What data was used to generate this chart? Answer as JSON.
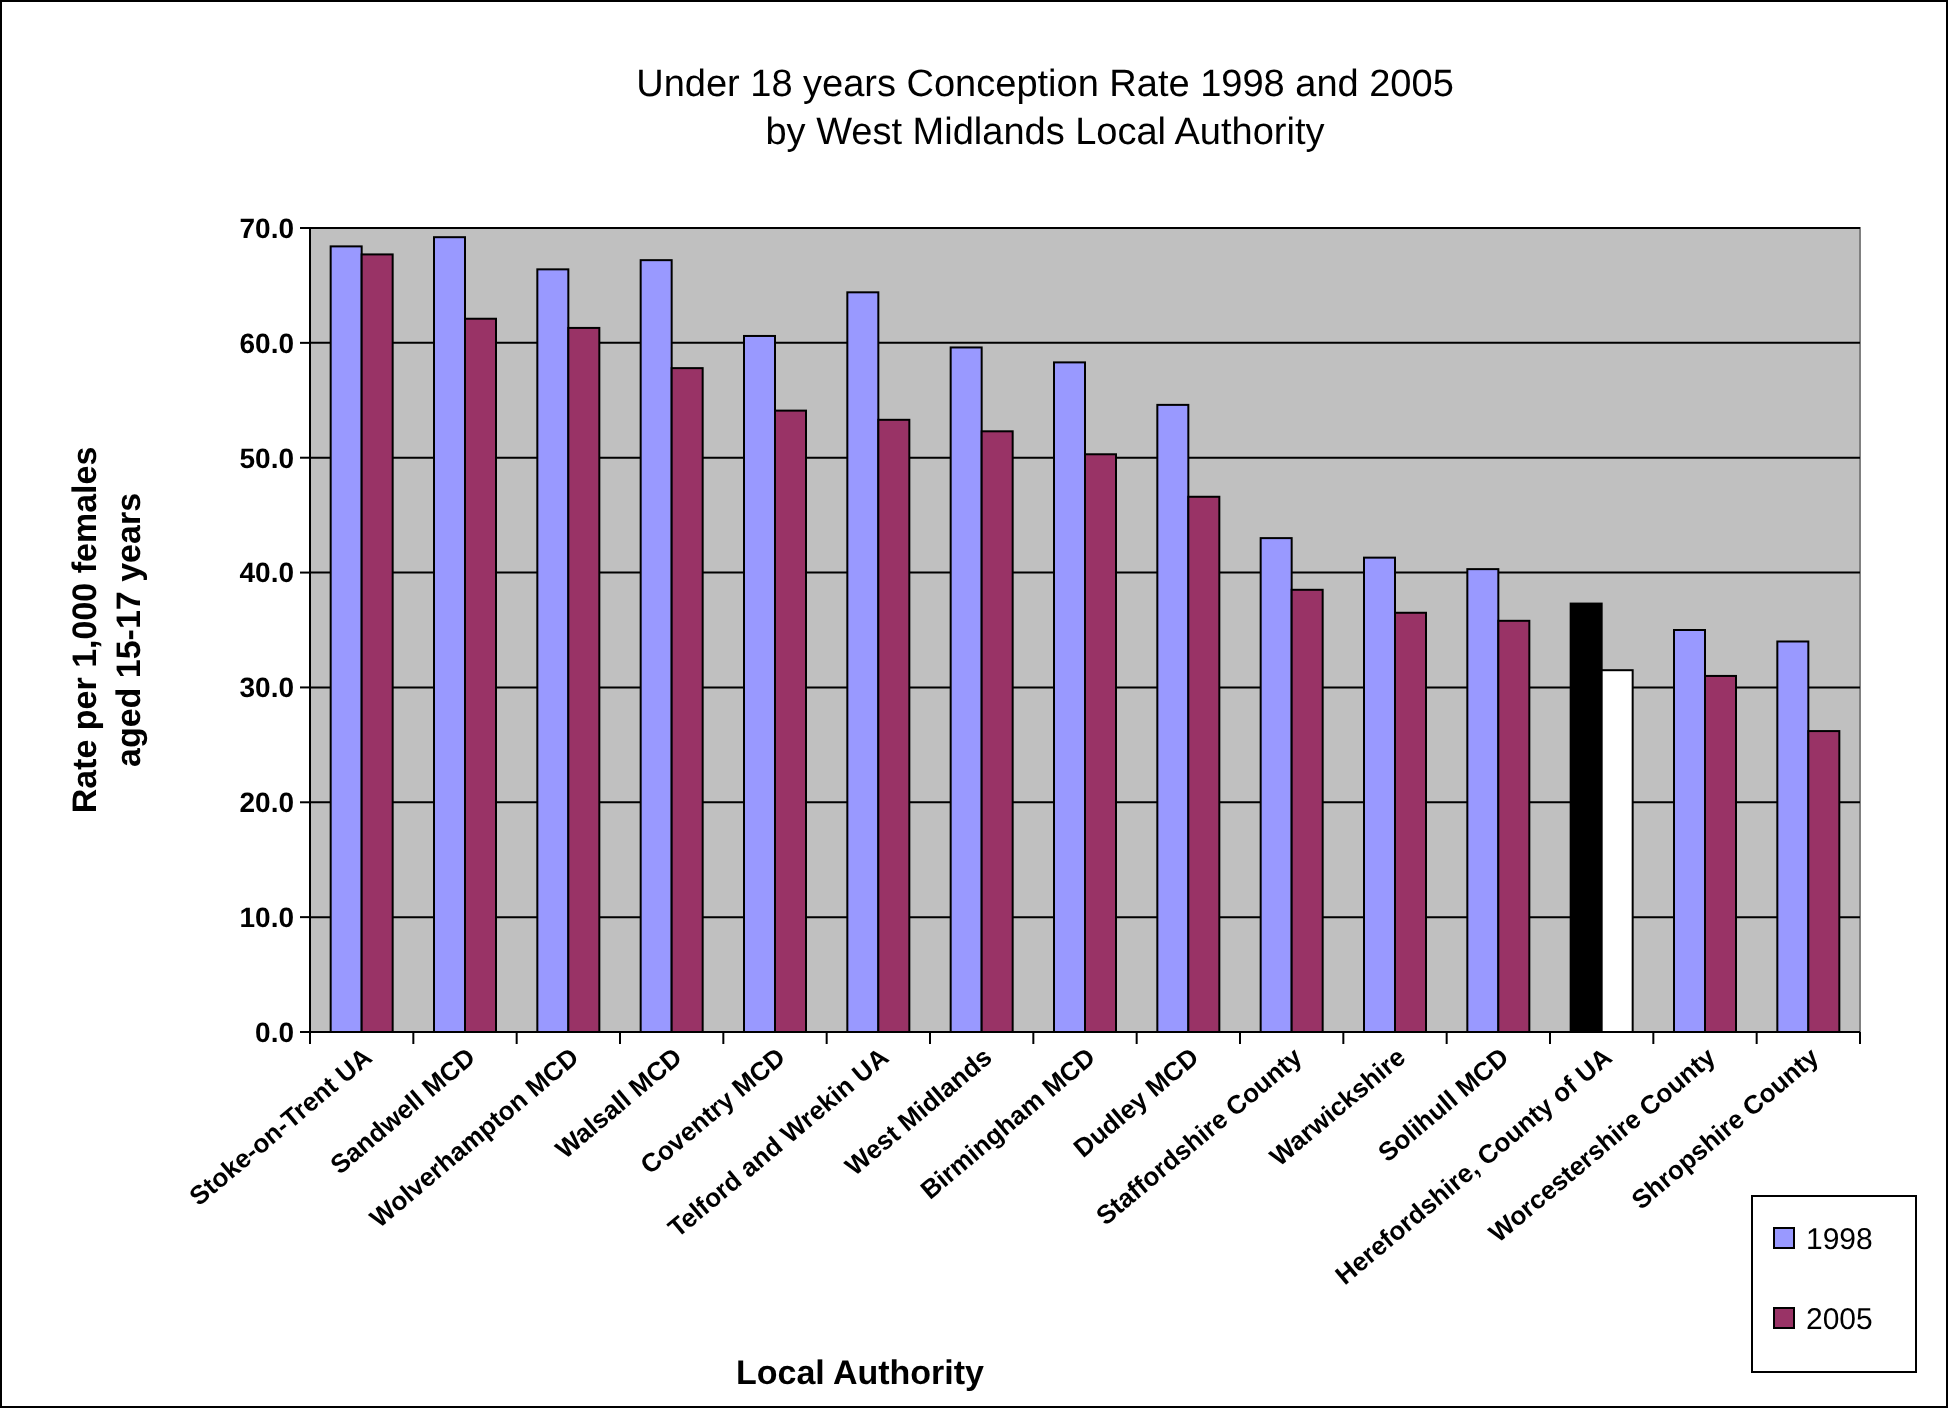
{
  "chart_data": {
    "type": "bar",
    "title": "Under 18 years Conception Rate 1998 and 2005\nby West Midlands Local Authority",
    "xlabel": "Local Authority",
    "ylabel": "Rate per 1,000 females\naged 15-17 years",
    "categories": [
      "Stoke-on-Trent UA",
      "Sandwell MCD",
      "Wolverhampton MCD",
      "Walsall MCD",
      "Coventry MCD",
      "Telford and Wrekin UA",
      "West Midlands",
      "Birmingham MCD",
      "Dudley MCD",
      "Staffordshire County",
      "Warwickshire",
      "Solihull MCD",
      "Herefordshire, County of UA",
      "Worcestershire County",
      "Shropshire County"
    ],
    "series": [
      {
        "name": "1998",
        "color": "#9999ff",
        "colors": [
          "#9999ff",
          "#9999ff",
          "#9999ff",
          "#9999ff",
          "#9999ff",
          "#9999ff",
          "#9999ff",
          "#9999ff",
          "#9999ff",
          "#9999ff",
          "#9999ff",
          "#9999ff",
          "#000000",
          "#9999ff",
          "#9999ff"
        ],
        "values": [
          68.4,
          69.2,
          66.4,
          67.2,
          60.6,
          64.4,
          59.6,
          58.3,
          54.6,
          43.0,
          41.3,
          40.3,
          37.3,
          35.0,
          34.0
        ]
      },
      {
        "name": "2005",
        "color": "#993366",
        "colors": [
          "#993366",
          "#993366",
          "#993366",
          "#993366",
          "#993366",
          "#993366",
          "#993366",
          "#993366",
          "#993366",
          "#993366",
          "#993366",
          "#993366",
          "#ffffff",
          "#993366",
          "#993366"
        ],
        "values": [
          67.7,
          62.1,
          61.3,
          57.8,
          54.1,
          53.3,
          52.3,
          50.3,
          46.6,
          38.5,
          36.5,
          35.8,
          31.5,
          31.0,
          26.2
        ]
      }
    ],
    "ylim": [
      0,
      70
    ],
    "yticks": [
      {
        "value": 0,
        "label": "0.0"
      },
      {
        "value": 10,
        "label": "10.0"
      },
      {
        "value": 20,
        "label": "20.0"
      },
      {
        "value": 30,
        "label": "30.0"
      },
      {
        "value": 40,
        "label": "40.0"
      },
      {
        "value": 50,
        "label": "50.0"
      },
      {
        "value": 60,
        "label": "60.0"
      },
      {
        "value": 70,
        "label": "70.0"
      }
    ],
    "grid": "y",
    "legend": "bottom right"
  }
}
